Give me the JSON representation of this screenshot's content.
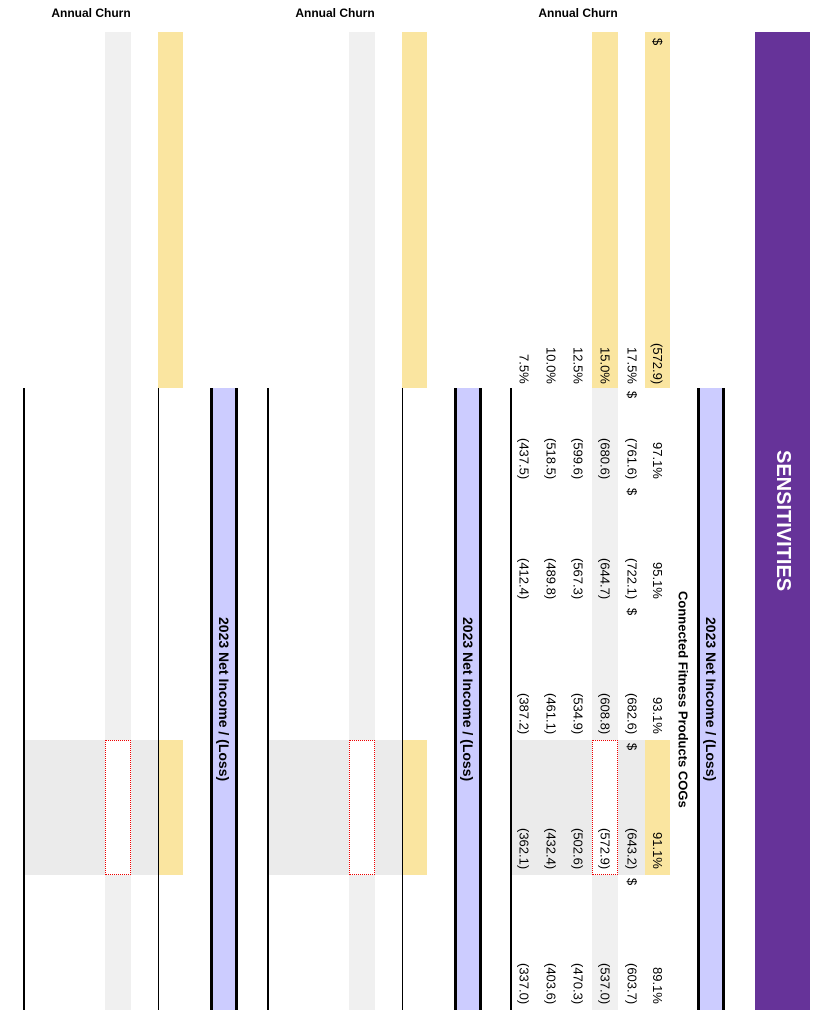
{
  "title": "SENSITIVITIES",
  "tables": [
    {
      "label": "Annual Churn",
      "header": "2023 Net Income / (Loss)",
      "column_title": "Connected Fitness Products COGs",
      "base_currency": "$",
      "base_value": "(572.9)",
      "columns": [
        "97.1%",
        "95.1%",
        "93.1%",
        "91.1%",
        "89.1%"
      ],
      "rows": [
        {
          "label": "17.5%",
          "currency": "$",
          "cells": [
            "(761.6)",
            "(722.1)",
            "(682.6)",
            "(643.2)",
            "(603.7)"
          ]
        },
        {
          "label": "15.0%",
          "cells": [
            "(680.6)",
            "(644.7)",
            "(608.8)",
            "(572.9)",
            "(537.0)"
          ]
        },
        {
          "label": "12.5%",
          "cells": [
            "(599.6)",
            "(567.3)",
            "(534.9)",
            "(502.6)",
            "(470.3)"
          ]
        },
        {
          "label": "10.0%",
          "cells": [
            "(518.5)",
            "(489.8)",
            "(461.1)",
            "(432.4)",
            "(403.6)"
          ]
        },
        {
          "label": "7.5%",
          "cells": [
            "(437.5)",
            "(412.4)",
            "(387.2)",
            "(362.1)",
            "(337.0)"
          ]
        }
      ]
    },
    {
      "label": "Annual Churn",
      "header": "2023 Net Income / (Loss)"
    },
    {
      "label": "Annual Churn",
      "header": "2023 Net Income / (Loss)"
    }
  ]
}
